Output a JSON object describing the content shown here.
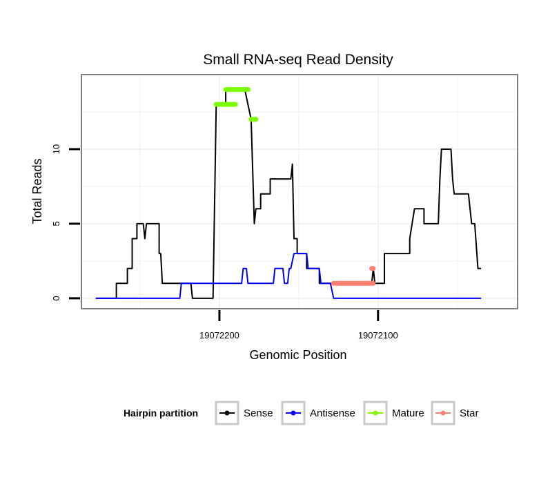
{
  "chart_data": {
    "type": "line",
    "title": "Small RNA-seq Read Density",
    "xlabel": "Genomic Position",
    "ylabel": "Total Reads",
    "x_reversed": true,
    "xlim": [
      19072287,
      19072012
    ],
    "ylim": [
      -0.7,
      15
    ],
    "y_ticks": [
      0,
      5,
      10
    ],
    "x_ticks": [
      19072200,
      19072100
    ],
    "x_tick_labels": [
      "19072200",
      "19072100"
    ],
    "legend": {
      "title": "Hairpin partition",
      "position": "bottom",
      "entries": [
        {
          "name": "Sense",
          "color": "#000000"
        },
        {
          "name": "Antisense",
          "color": "#0000ff"
        },
        {
          "name": "Mature",
          "color": "#7cfc00"
        },
        {
          "name": "Star",
          "color": "#fa8072"
        }
      ]
    },
    "series": [
      {
        "name": "Sense",
        "color": "#000000",
        "points": [
          [
            19072278,
            0
          ],
          [
            19072265,
            0
          ],
          [
            19072265,
            1
          ],
          [
            19072258,
            1
          ],
          [
            19072258,
            2
          ],
          [
            19072255,
            2
          ],
          [
            19072255,
            4
          ],
          [
            19072252,
            4
          ],
          [
            19072252,
            5
          ],
          [
            19072248,
            5
          ],
          [
            19072247,
            4
          ],
          [
            19072246,
            5
          ],
          [
            19072238,
            5
          ],
          [
            19072238,
            3
          ],
          [
            19072237,
            3
          ],
          [
            19072236,
            1
          ],
          [
            19072218,
            1
          ],
          [
            19072217,
            0
          ],
          [
            19072204,
            0
          ],
          [
            19072202,
            13
          ],
          [
            19072196,
            13
          ],
          [
            19072196,
            14
          ],
          [
            19072184,
            14
          ],
          [
            19072180,
            12
          ],
          [
            19072178,
            5
          ],
          [
            19072177,
            6
          ],
          [
            19072174,
            6
          ],
          [
            19072174,
            7
          ],
          [
            19072168,
            7
          ],
          [
            19072168,
            8
          ],
          [
            19072155,
            8
          ],
          [
            19072154,
            9
          ],
          [
            19072153,
            4
          ],
          [
            19072151,
            4
          ],
          [
            19072151,
            3
          ],
          [
            19072145,
            3
          ],
          [
            19072145,
            2
          ],
          [
            19072137,
            2
          ],
          [
            19072137,
            1
          ],
          [
            19072104,
            1
          ],
          [
            19072103,
            2
          ],
          [
            19072102,
            1
          ],
          [
            19072096,
            1
          ],
          [
            19072096,
            3
          ],
          [
            19072080,
            3
          ],
          [
            19072080,
            4
          ],
          [
            19072077,
            6
          ],
          [
            19072071,
            6
          ],
          [
            19072071,
            5
          ],
          [
            19072062,
            5
          ],
          [
            19072061,
            8
          ],
          [
            19072060,
            10
          ],
          [
            19072054,
            10
          ],
          [
            19072053,
            8
          ],
          [
            19072052,
            7
          ],
          [
            19072043,
            7
          ],
          [
            19072041,
            5
          ],
          [
            19072039,
            5
          ],
          [
            19072037,
            2
          ],
          [
            19072035,
            2
          ]
        ]
      },
      {
        "name": "Antisense",
        "color": "#0000ff",
        "points": [
          [
            19072278,
            0
          ],
          [
            19072225,
            0
          ],
          [
            19072224,
            1
          ],
          [
            19072186,
            1
          ],
          [
            19072185,
            2
          ],
          [
            19072183,
            2
          ],
          [
            19072182,
            1
          ],
          [
            19072166,
            1
          ],
          [
            19072165,
            2
          ],
          [
            19072160,
            2
          ],
          [
            19072159,
            1
          ],
          [
            19072157,
            1
          ],
          [
            19072156,
            2
          ],
          [
            19072155,
            2
          ],
          [
            19072153,
            3
          ],
          [
            19072145,
            3
          ],
          [
            19072144,
            2
          ],
          [
            19072137,
            2
          ],
          [
            19072136,
            1
          ],
          [
            19072130,
            1
          ],
          [
            19072128,
            0
          ],
          [
            19072035,
            0
          ]
        ]
      },
      {
        "name": "Mature",
        "color": "#7cfc00",
        "segments": [
          {
            "from": 19072202,
            "to": 19072190,
            "y": 13
          },
          {
            "from": 19072196,
            "to": 19072182,
            "y": 14
          },
          {
            "from": 19072180,
            "to": 19072177,
            "y": 12
          }
        ]
      },
      {
        "name": "Star",
        "color": "#fa8072",
        "segments": [
          {
            "from": 19072128,
            "to": 19072103,
            "y": 1
          },
          {
            "from": 19072104,
            "to": 19072103,
            "y": 2
          }
        ]
      }
    ]
  }
}
